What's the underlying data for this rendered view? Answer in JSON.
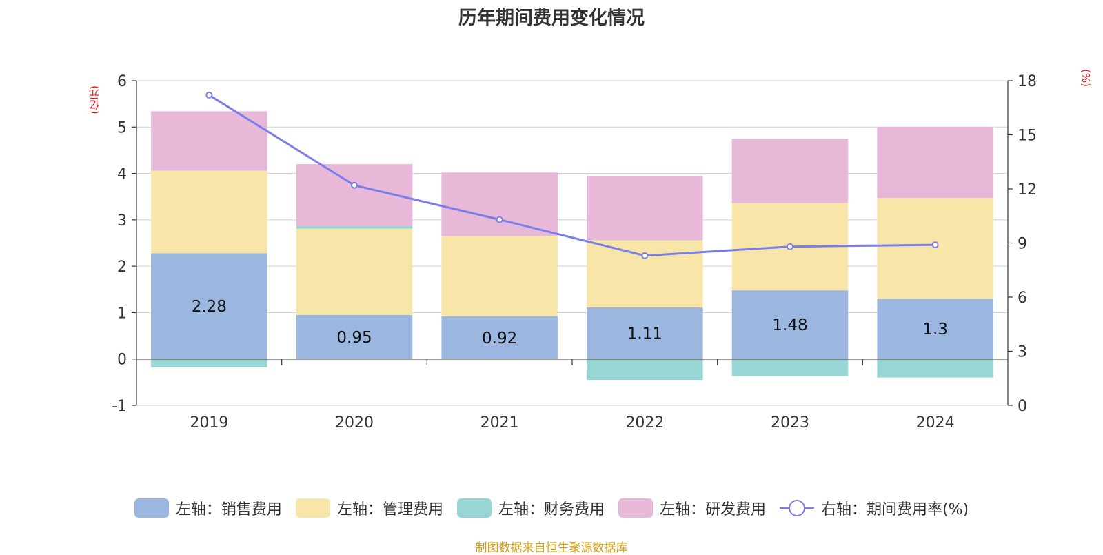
{
  "chart_data": {
    "type": "bar",
    "title": "历年期间费用变化情况",
    "left_unit": "(亿元)",
    "right_unit": "(%)",
    "categories": [
      "2019",
      "2020",
      "2021",
      "2022",
      "2023",
      "2024"
    ],
    "stacked": true,
    "left_axis": {
      "min": -1,
      "max": 6,
      "ticks": [
        -1,
        0,
        1,
        2,
        3,
        4,
        5,
        6
      ]
    },
    "right_axis": {
      "min": 0,
      "max": 18,
      "ticks": [
        0,
        3,
        6,
        9,
        12,
        15,
        18
      ]
    },
    "series": [
      {
        "name": "左轴：销售费用",
        "axis": "left",
        "color": "#9bb7e0",
        "values": [
          2.28,
          0.95,
          0.92,
          1.11,
          1.48,
          1.3
        ],
        "labels": [
          "2.28",
          "0.95",
          "0.92",
          "1.11",
          "1.48",
          "1.3"
        ]
      },
      {
        "name": "左轴：管理费用",
        "axis": "left",
        "color": "#f8e6a8",
        "values": [
          1.78,
          1.86,
          1.73,
          1.45,
          1.88,
          2.17
        ]
      },
      {
        "name": "左轴：财务费用",
        "axis": "left",
        "color": "#98d5d5",
        "values": [
          -0.18,
          0.06,
          0.0,
          -0.45,
          -0.37,
          -0.4
        ]
      },
      {
        "name": "左轴：研发费用",
        "axis": "left",
        "color": "#e8b8d8",
        "values": [
          1.28,
          1.33,
          1.37,
          1.39,
          1.39,
          1.53
        ]
      },
      {
        "name": "右轴：期间费用率(%)",
        "axis": "right",
        "type": "line",
        "color": "#7b7de8",
        "values": [
          17.2,
          12.2,
          10.3,
          8.3,
          8.8,
          8.9
        ]
      }
    ],
    "grid": true,
    "legend_position": "bottom"
  },
  "source": "制图数据来自恒生聚源数据库"
}
